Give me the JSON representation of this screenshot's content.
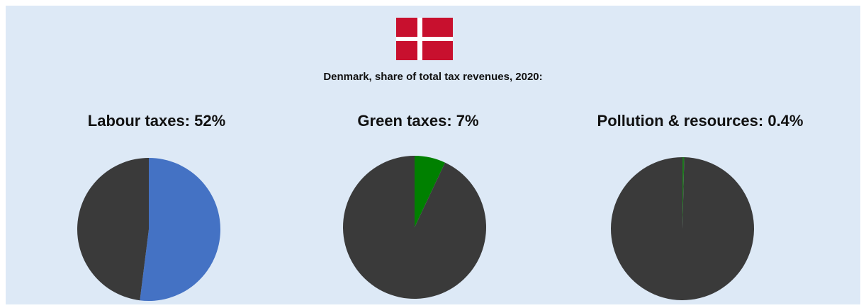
{
  "header": {
    "subtitle": "Denmark, share of total tax revenues, 2020:",
    "flag_colors": {
      "red": "#c8102e",
      "white": "#ffffff"
    }
  },
  "colors": {
    "background": "#dde9f6",
    "remainder": "#3a3a3a"
  },
  "chart_data": [
    {
      "type": "pie",
      "title": "Labour taxes: 52%",
      "slices": [
        {
          "label": "Labour taxes",
          "value": 52,
          "color": "#4472c4"
        },
        {
          "label": "",
          "value": 48,
          "color": "#3a3a3a"
        }
      ]
    },
    {
      "type": "pie",
      "title": "Green taxes: 7%",
      "slices": [
        {
          "label": "Green taxes",
          "value": 7,
          "color": "#008000"
        },
        {
          "label": "",
          "value": 93,
          "color": "#3a3a3a"
        }
      ]
    },
    {
      "type": "pie",
      "title": "Pollution & resources: 0.4%",
      "slices": [
        {
          "label": "Pollution & resources",
          "value": 0.4,
          "color": "#1e7a1e"
        },
        {
          "label": "",
          "value": 99.6,
          "color": "#3a3a3a"
        }
      ]
    }
  ]
}
